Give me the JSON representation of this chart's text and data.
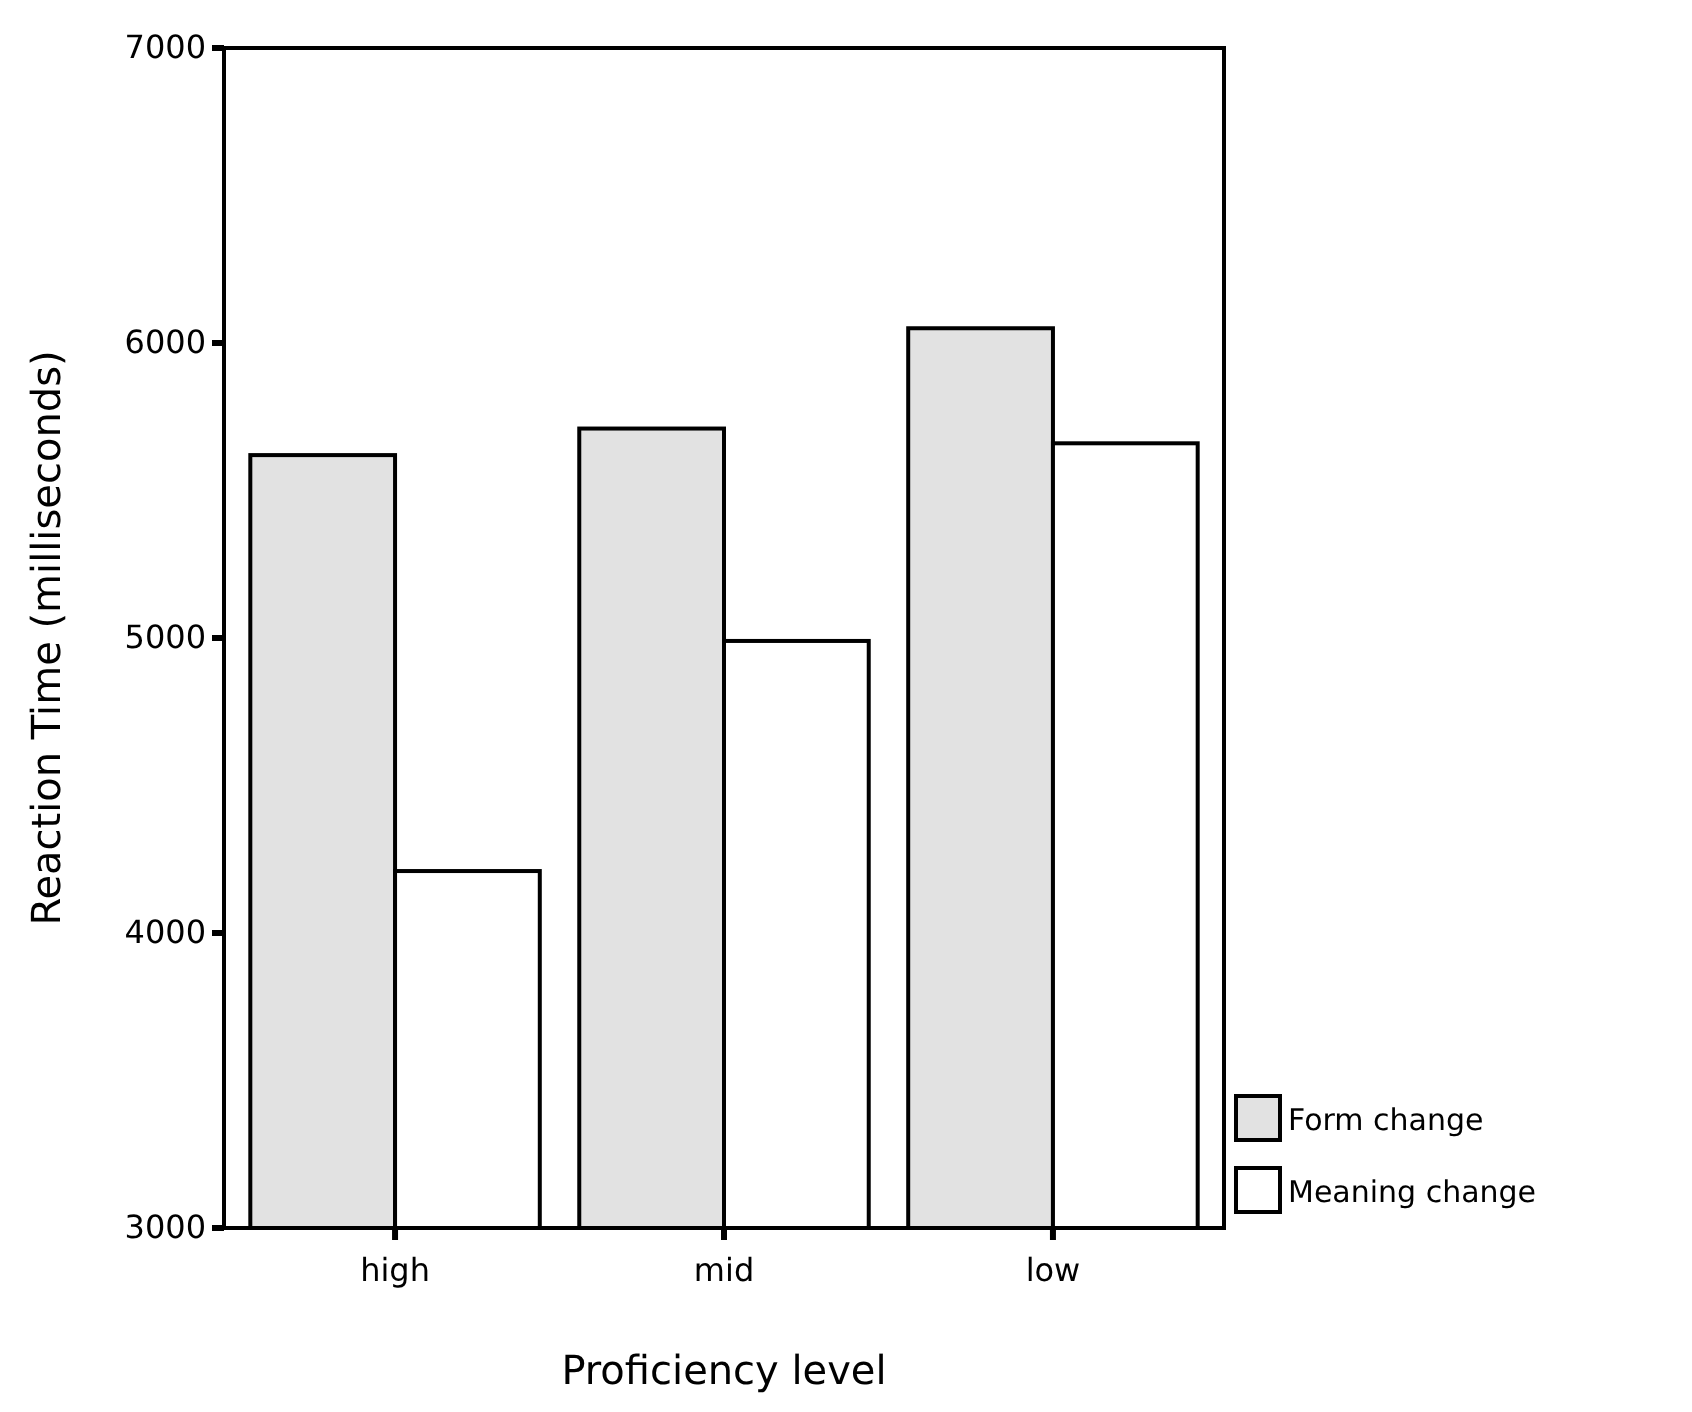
{
  "chart_data": {
    "type": "bar",
    "xlabel": "Proficiency level",
    "ylabel": "Reaction Time (milliseconds)",
    "categories": [
      "high",
      "mid",
      "low"
    ],
    "series": [
      {
        "name": "Form change",
        "color": "#e2e2e2",
        "values": [
          5620,
          5710,
          6050
        ]
      },
      {
        "name": "Meaning change",
        "color": "#ffffff",
        "values": [
          4210,
          4990,
          5660
        ]
      }
    ],
    "ylim": [
      3000,
      7000
    ],
    "yticks": [
      3000,
      4000,
      5000,
      6000,
      7000
    ],
    "legend": "bottom right",
    "grid": false
  }
}
